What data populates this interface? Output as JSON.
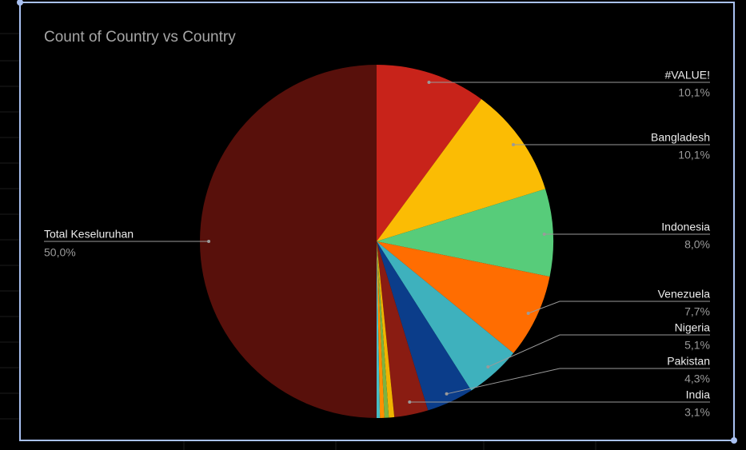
{
  "chart_data": {
    "type": "pie",
    "title": "Count of Country vs Country",
    "categories": [
      "#VALUE!",
      "Bangladesh",
      "Indonesia",
      "Venezuela",
      "Nigeria",
      "Pakistan",
      "India",
      null,
      null,
      null,
      null,
      "Total Keseluruhan"
    ],
    "values": [
      10.1,
      10.1,
      8.0,
      7.7,
      5.1,
      4.3,
      3.1,
      0.5,
      0.4,
      0.4,
      0.3,
      50.0
    ],
    "value_labels": [
      "10,1%",
      "10,1%",
      "8,0%",
      "7,7%",
      "5,1%",
      "4,3%",
      "3,1%",
      null,
      null,
      null,
      null,
      "50,0%"
    ],
    "colors": [
      "#c8231a",
      "#fbbc04",
      "#57cc7a",
      "#ff6d01",
      "#3eb1bd",
      "#0b3d8a",
      "#8a1c12",
      "#f0b400",
      "#7cb342",
      "#ff8f00",
      "#46bdc6",
      "#58100b"
    ]
  }
}
